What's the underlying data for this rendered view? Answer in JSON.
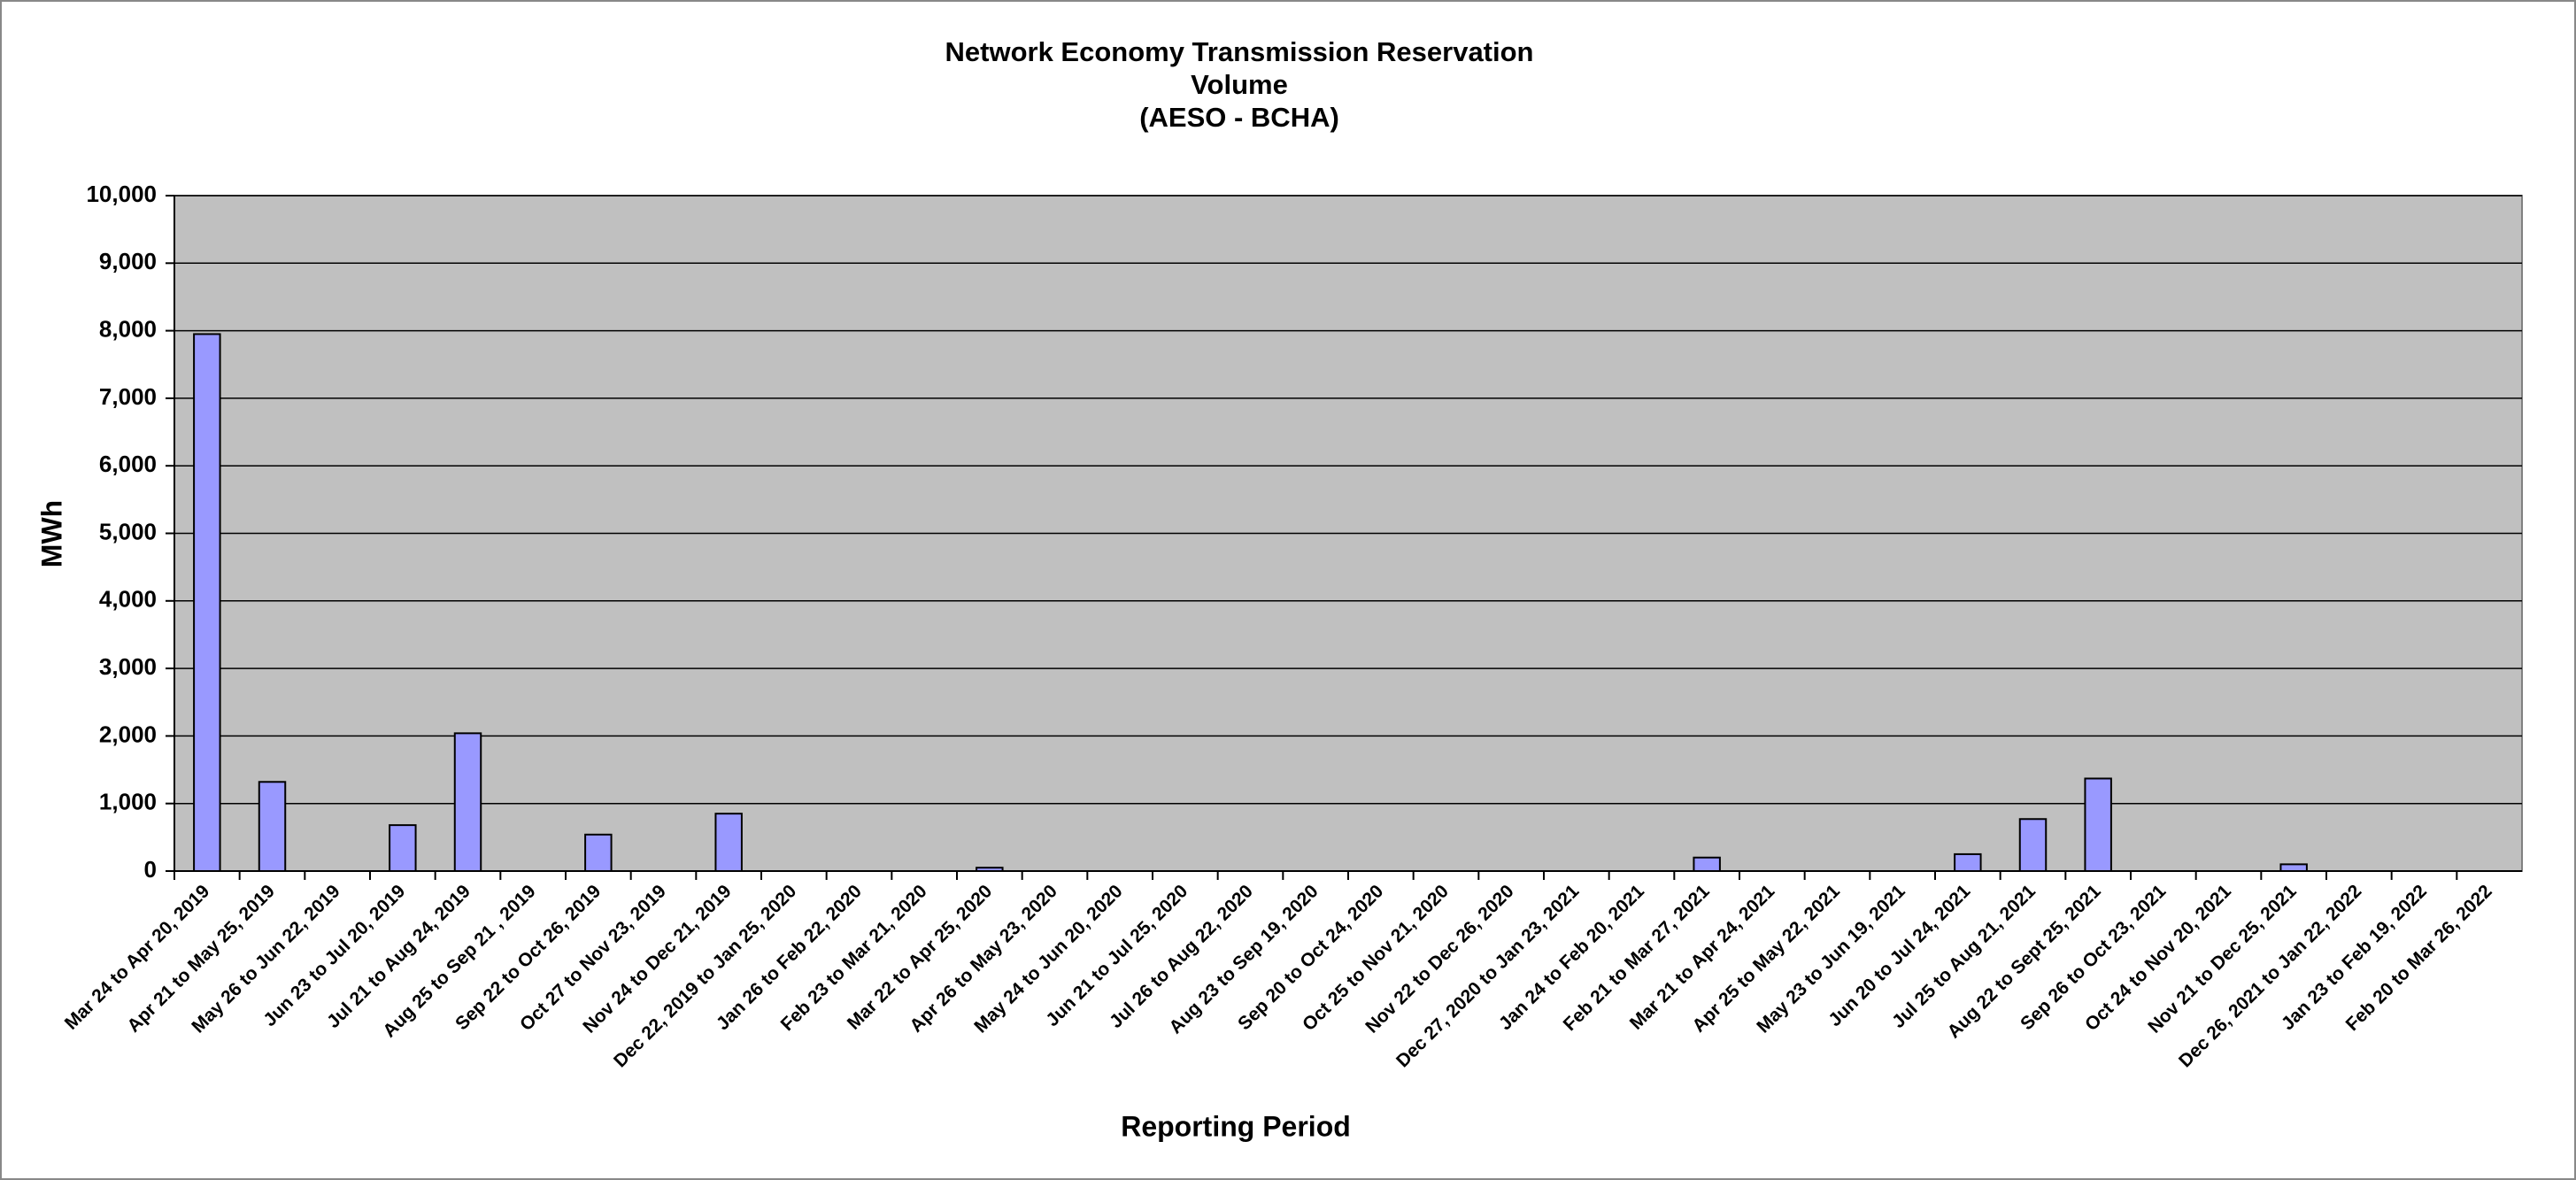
{
  "chart_data": {
    "type": "bar",
    "title": [
      "Network Economy Transmission Reservation",
      "Volume",
      "(AESO - BCHA)"
    ],
    "x_label": "Reporting Period",
    "y_label": "MWh",
    "categories": [
      "Mar 24 to Apr 20, 2019",
      "Apr 21 to May 25, 2019",
      "May 26 to Jun 22, 2019",
      "Jun 23 to Jul 20, 2019",
      "Jul 21 to Aug 24, 2019",
      "Aug 25 to Sep 21 , 2019",
      "Sep 22 to Oct 26, 2019",
      "Oct 27 to Nov 23, 2019",
      "Nov 24 to Dec 21, 2019",
      "Dec 22, 2019 to Jan 25, 2020",
      "Jan 26 to Feb 22, 2020",
      "Feb 23 to Mar 21, 2020",
      "Mar 22 to Apr 25, 2020",
      "Apr 26 to May 23, 2020",
      "May 24 to Jun 20, 2020",
      "Jun 21 to Jul 25, 2020",
      "Jul 26 to Aug 22, 2020",
      "Aug 23 to Sep 19, 2020",
      "Sep 20 to Oct 24, 2020",
      "Oct 25 to Nov 21, 2020",
      "Nov 22 to Dec 26, 2020",
      "Dec 27, 2020 to Jan 23, 2021",
      "Jan 24 to Feb 20, 2021",
      "Feb 21 to Mar 27, 2021",
      "Mar 21 to Apr 24, 2021",
      "Apr 25 to May 22, 2021",
      "May 23 to Jun 19, 2021",
      "Jun 20 to Jul 24, 2021",
      "Jul 25 to Aug 21, 2021",
      "Aug 22 to Sept 25, 2021",
      "Sep 26 to Oct 23, 2021",
      "Oct 24 to Nov 20, 2021",
      "Nov 21 to Dec 25, 2021",
      "Dec 26, 2021 to Jan 22, 2022",
      "Jan 23 to Feb 19, 2022",
      "Feb 20 to Mar 26, 2022"
    ],
    "values": [
      7950,
      1320,
      0,
      680,
      2040,
      0,
      540,
      0,
      850,
      0,
      0,
      0,
      50,
      0,
      0,
      0,
      0,
      0,
      0,
      0,
      0,
      0,
      0,
      200,
      0,
      0,
      0,
      250,
      770,
      1370,
      0,
      0,
      100,
      0,
      0,
      0
    ],
    "color": "#9999ff",
    "ylim": [
      0,
      10000
    ],
    "yticks": [
      0,
      {
        "value": 1000,
        "label": "1,000"
      },
      {
        "value": 2000,
        "label": "2,000"
      },
      {
        "value": 3000,
        "label": "3,000"
      },
      {
        "value": 4000,
        "label": "4,000"
      },
      {
        "value": 5000,
        "label": "5,000"
      },
      {
        "value": 6000,
        "label": "6,000"
      },
      {
        "value": 7000,
        "label": "7,000"
      },
      {
        "value": 8000,
        "label": "8,000"
      },
      {
        "value": 9000,
        "label": "9,000"
      },
      {
        "value": 10000,
        "label": "10,000"
      }
    ],
    "grid": true
  }
}
